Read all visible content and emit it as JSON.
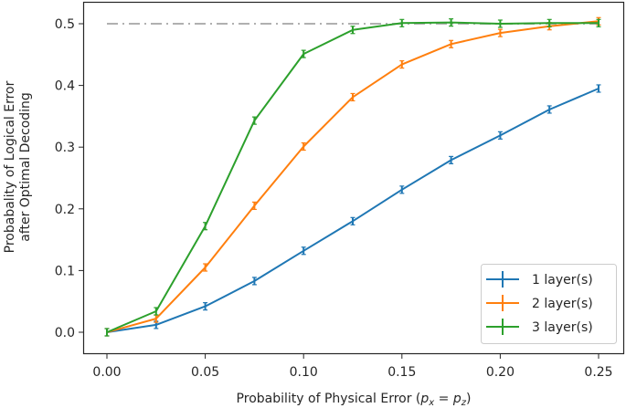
{
  "chart_data": {
    "type": "line",
    "title": "",
    "xlabel": "Probability of Physical Error (p_x = p_z)",
    "xlabel_parts": {
      "prefix": "Probability of Physical Error (",
      "p": "p",
      "sub_x": "x",
      "eq": " = ",
      "sub_z": "z",
      "suffix": ")"
    },
    "ylabel": [
      "Probabality of Logical Error",
      "after Optimal Decoding"
    ],
    "x": [
      0.0,
      0.025,
      0.05,
      0.075,
      0.1,
      0.125,
      0.15,
      0.175,
      0.2,
      0.225,
      0.25
    ],
    "xlim": [
      -0.012,
      0.262
    ],
    "ylim": [
      -0.035,
      0.535
    ],
    "xticks": [
      0.0,
      0.05,
      0.1,
      0.15,
      0.2,
      0.25
    ],
    "xtick_labels": [
      "0.00",
      "0.05",
      "0.10",
      "0.15",
      "0.20",
      "0.25"
    ],
    "yticks": [
      0.0,
      0.1,
      0.2,
      0.3,
      0.4,
      0.5
    ],
    "ytick_labels": [
      "0.0",
      "0.1",
      "0.2",
      "0.3",
      "0.4",
      "0.5"
    ],
    "grid": false,
    "legend_position": "lower right",
    "reference_line": {
      "y": 0.5,
      "x_range": [
        0.0,
        0.25
      ],
      "style": "dashdot",
      "color": "#b0b0b0"
    },
    "series": [
      {
        "name": "1 layer(s)",
        "color": "#1f77b4",
        "marker": "errorbar",
        "values": [
          0.0,
          0.012,
          0.042,
          0.083,
          0.132,
          0.18,
          0.231,
          0.279,
          0.319,
          0.361,
          0.395
        ]
      },
      {
        "name": "2 layer(s)",
        "color": "#ff7f0e",
        "marker": "errorbar",
        "values": [
          0.0,
          0.022,
          0.105,
          0.205,
          0.301,
          0.381,
          0.434,
          0.467,
          0.485,
          0.496,
          0.504
        ]
      },
      {
        "name": "3 layer(s)",
        "color": "#2ca02c",
        "marker": "errorbar",
        "values": [
          0.0,
          0.034,
          0.172,
          0.343,
          0.451,
          0.49,
          0.501,
          0.502,
          0.5,
          0.501,
          0.501
        ]
      }
    ]
  }
}
